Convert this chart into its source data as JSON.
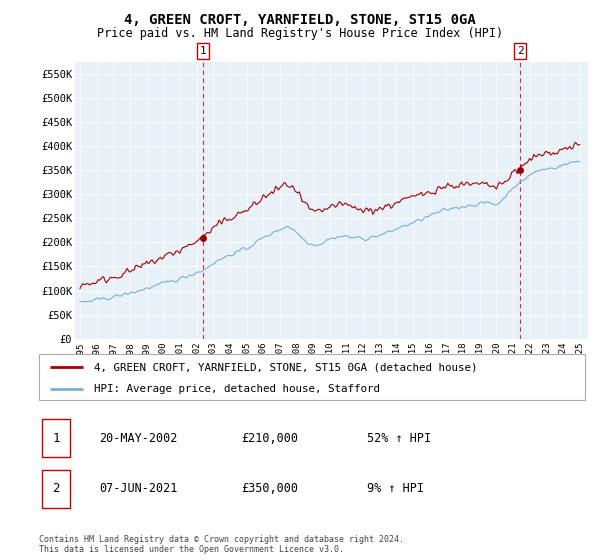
{
  "title": "4, GREEN CROFT, YARNFIELD, STONE, ST15 0GA",
  "subtitle": "Price paid vs. HM Land Registry's House Price Index (HPI)",
  "legend_line1": "4, GREEN CROFT, YARNFIELD, STONE, ST15 0GA (detached house)",
  "legend_line2": "HPI: Average price, detached house, Stafford",
  "annotation1_date": "20-MAY-2002",
  "annotation1_price": "£210,000",
  "annotation1_hpi": "52% ↑ HPI",
  "annotation2_date": "07-JUN-2021",
  "annotation2_price": "£350,000",
  "annotation2_hpi": "9% ↑ HPI",
  "footer": "Contains HM Land Registry data © Crown copyright and database right 2024.\nThis data is licensed under the Open Government Licence v3.0.",
  "property_color": "#aa0000",
  "hpi_color": "#7ab0d4",
  "background_color": "#e8f0f8",
  "marker_box_color": "#cc0000",
  "ylim": [
    0,
    575000
  ],
  "yticks": [
    0,
    50000,
    100000,
    150000,
    200000,
    250000,
    300000,
    350000,
    400000,
    450000,
    500000,
    550000
  ],
  "ytick_labels": [
    "£0",
    "£50K",
    "£100K",
    "£150K",
    "£200K",
    "£250K",
    "£300K",
    "£350K",
    "£400K",
    "£450K",
    "£500K",
    "£550K"
  ],
  "xtick_years": [
    1995,
    1996,
    1997,
    1998,
    1999,
    2000,
    2001,
    2002,
    2003,
    2004,
    2005,
    2006,
    2007,
    2008,
    2009,
    2010,
    2011,
    2012,
    2013,
    2014,
    2015,
    2016,
    2017,
    2018,
    2019,
    2020,
    2021,
    2022,
    2023,
    2024,
    2025
  ],
  "purchase1_x": 2002.38,
  "purchase1_y": 210000,
  "purchase2_x": 2021.43,
  "purchase2_y": 350000
}
